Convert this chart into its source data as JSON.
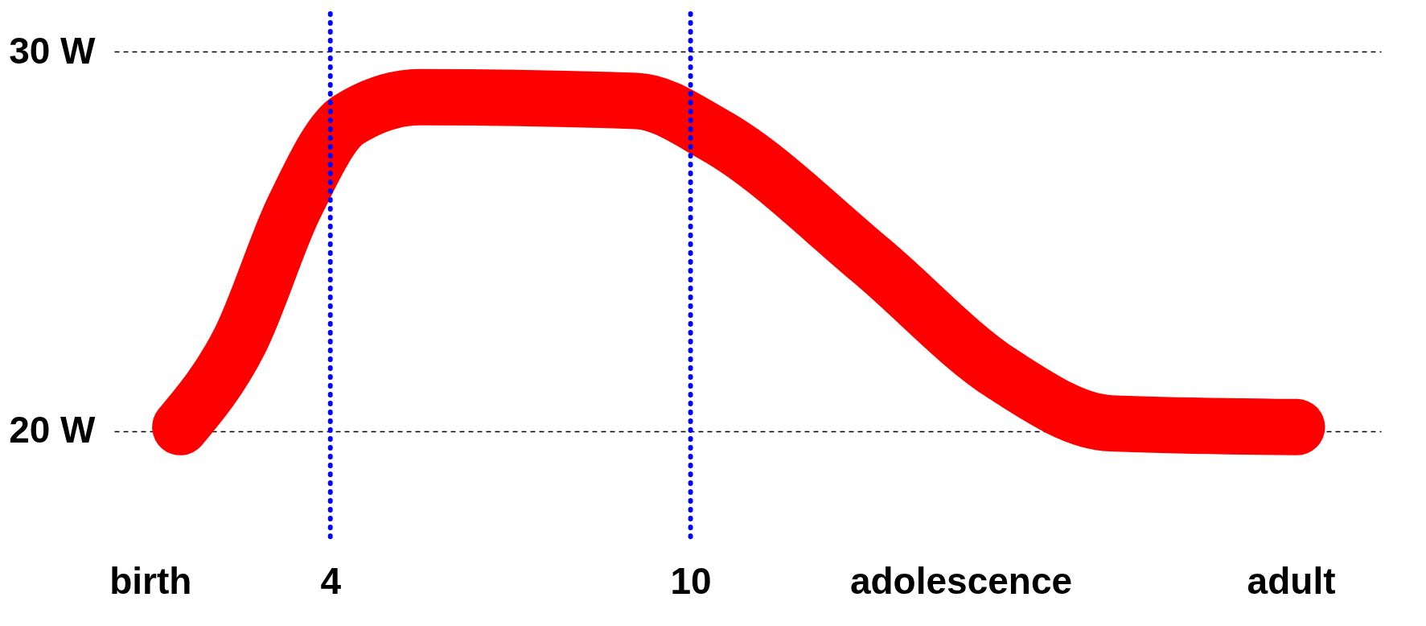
{
  "chart_data": {
    "type": "line",
    "xlim": [
      0.4,
      21.5
    ],
    "ylim": [
      17,
      31
    ],
    "xticks": [
      {
        "value": 1,
        "label": "birth"
      },
      4,
      10,
      {
        "value": 14.5,
        "label": "adolescence"
      },
      {
        "value": 20,
        "label": "adult"
      }
    ],
    "yticks": [
      {
        "value": 20,
        "label": "20 W"
      },
      {
        "value": 30,
        "label": "30 W"
      }
    ],
    "grid": "y",
    "line_style": "solid",
    "series": [
      {
        "color": "#ff0000",
        "x": [
          1.5,
          2.5,
          3.4,
          4.3,
          5.5,
          9.1,
          10.4,
          13.0,
          15.2,
          17.0,
          20.1
        ],
        "values": [
          20.1,
          22.4,
          25.9,
          28.2,
          28.8,
          28.7,
          27.8,
          24.5,
          21.5,
          20.2,
          20.1
        ]
      }
    ],
    "ref_lines": [
      {
        "axis": "x",
        "value": 4,
        "color": "#0000ff",
        "line_style": "dotted"
      },
      {
        "axis": "x",
        "value": 10,
        "color": "#0000ff",
        "line_style": "dotted"
      }
    ]
  }
}
